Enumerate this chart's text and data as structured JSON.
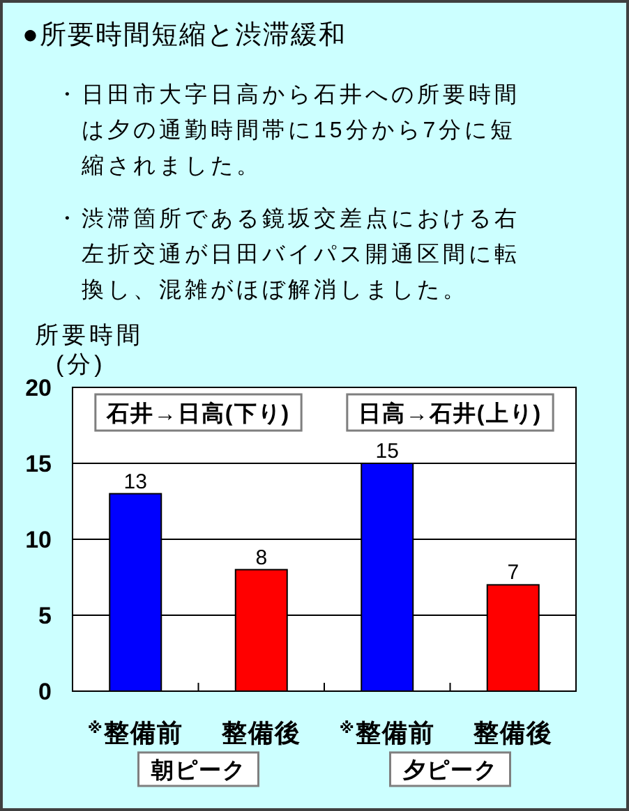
{
  "chart_data": {
    "type": "bar",
    "title": "●所要時間短縮と渋滞緩和",
    "ylabel": "所要時間(分)",
    "categories": [
      "$^{※}$整備前",
      "整備後",
      "$^{※}$整備前",
      "整備後"
    ],
    "values": [
      13,
      8,
      15,
      7
    ],
    "colors": [
      "#0000ff",
      "#ff0000",
      "#0000ff",
      "#ff0000"
    ],
    "ylim": [
      0,
      20
    ],
    "yticks": [
      0,
      5,
      10,
      15,
      20
    ],
    "grid": "y",
    "data_labels": true,
    "annotations": [
      "・日田市大字日高から石井への所要時間は夕の通勤時間帯に15分から7分に短縮されました。",
      "・渋滞箇所である鏡坂交差点における右左折交通が日田バイパス開通区間に転換し、混雑がほぼ解消しました。",
      "石井→日高(下り)",
      "日高→石井(上り)",
      "朝ピーク",
      "夕ピーク"
    ]
  }
}
